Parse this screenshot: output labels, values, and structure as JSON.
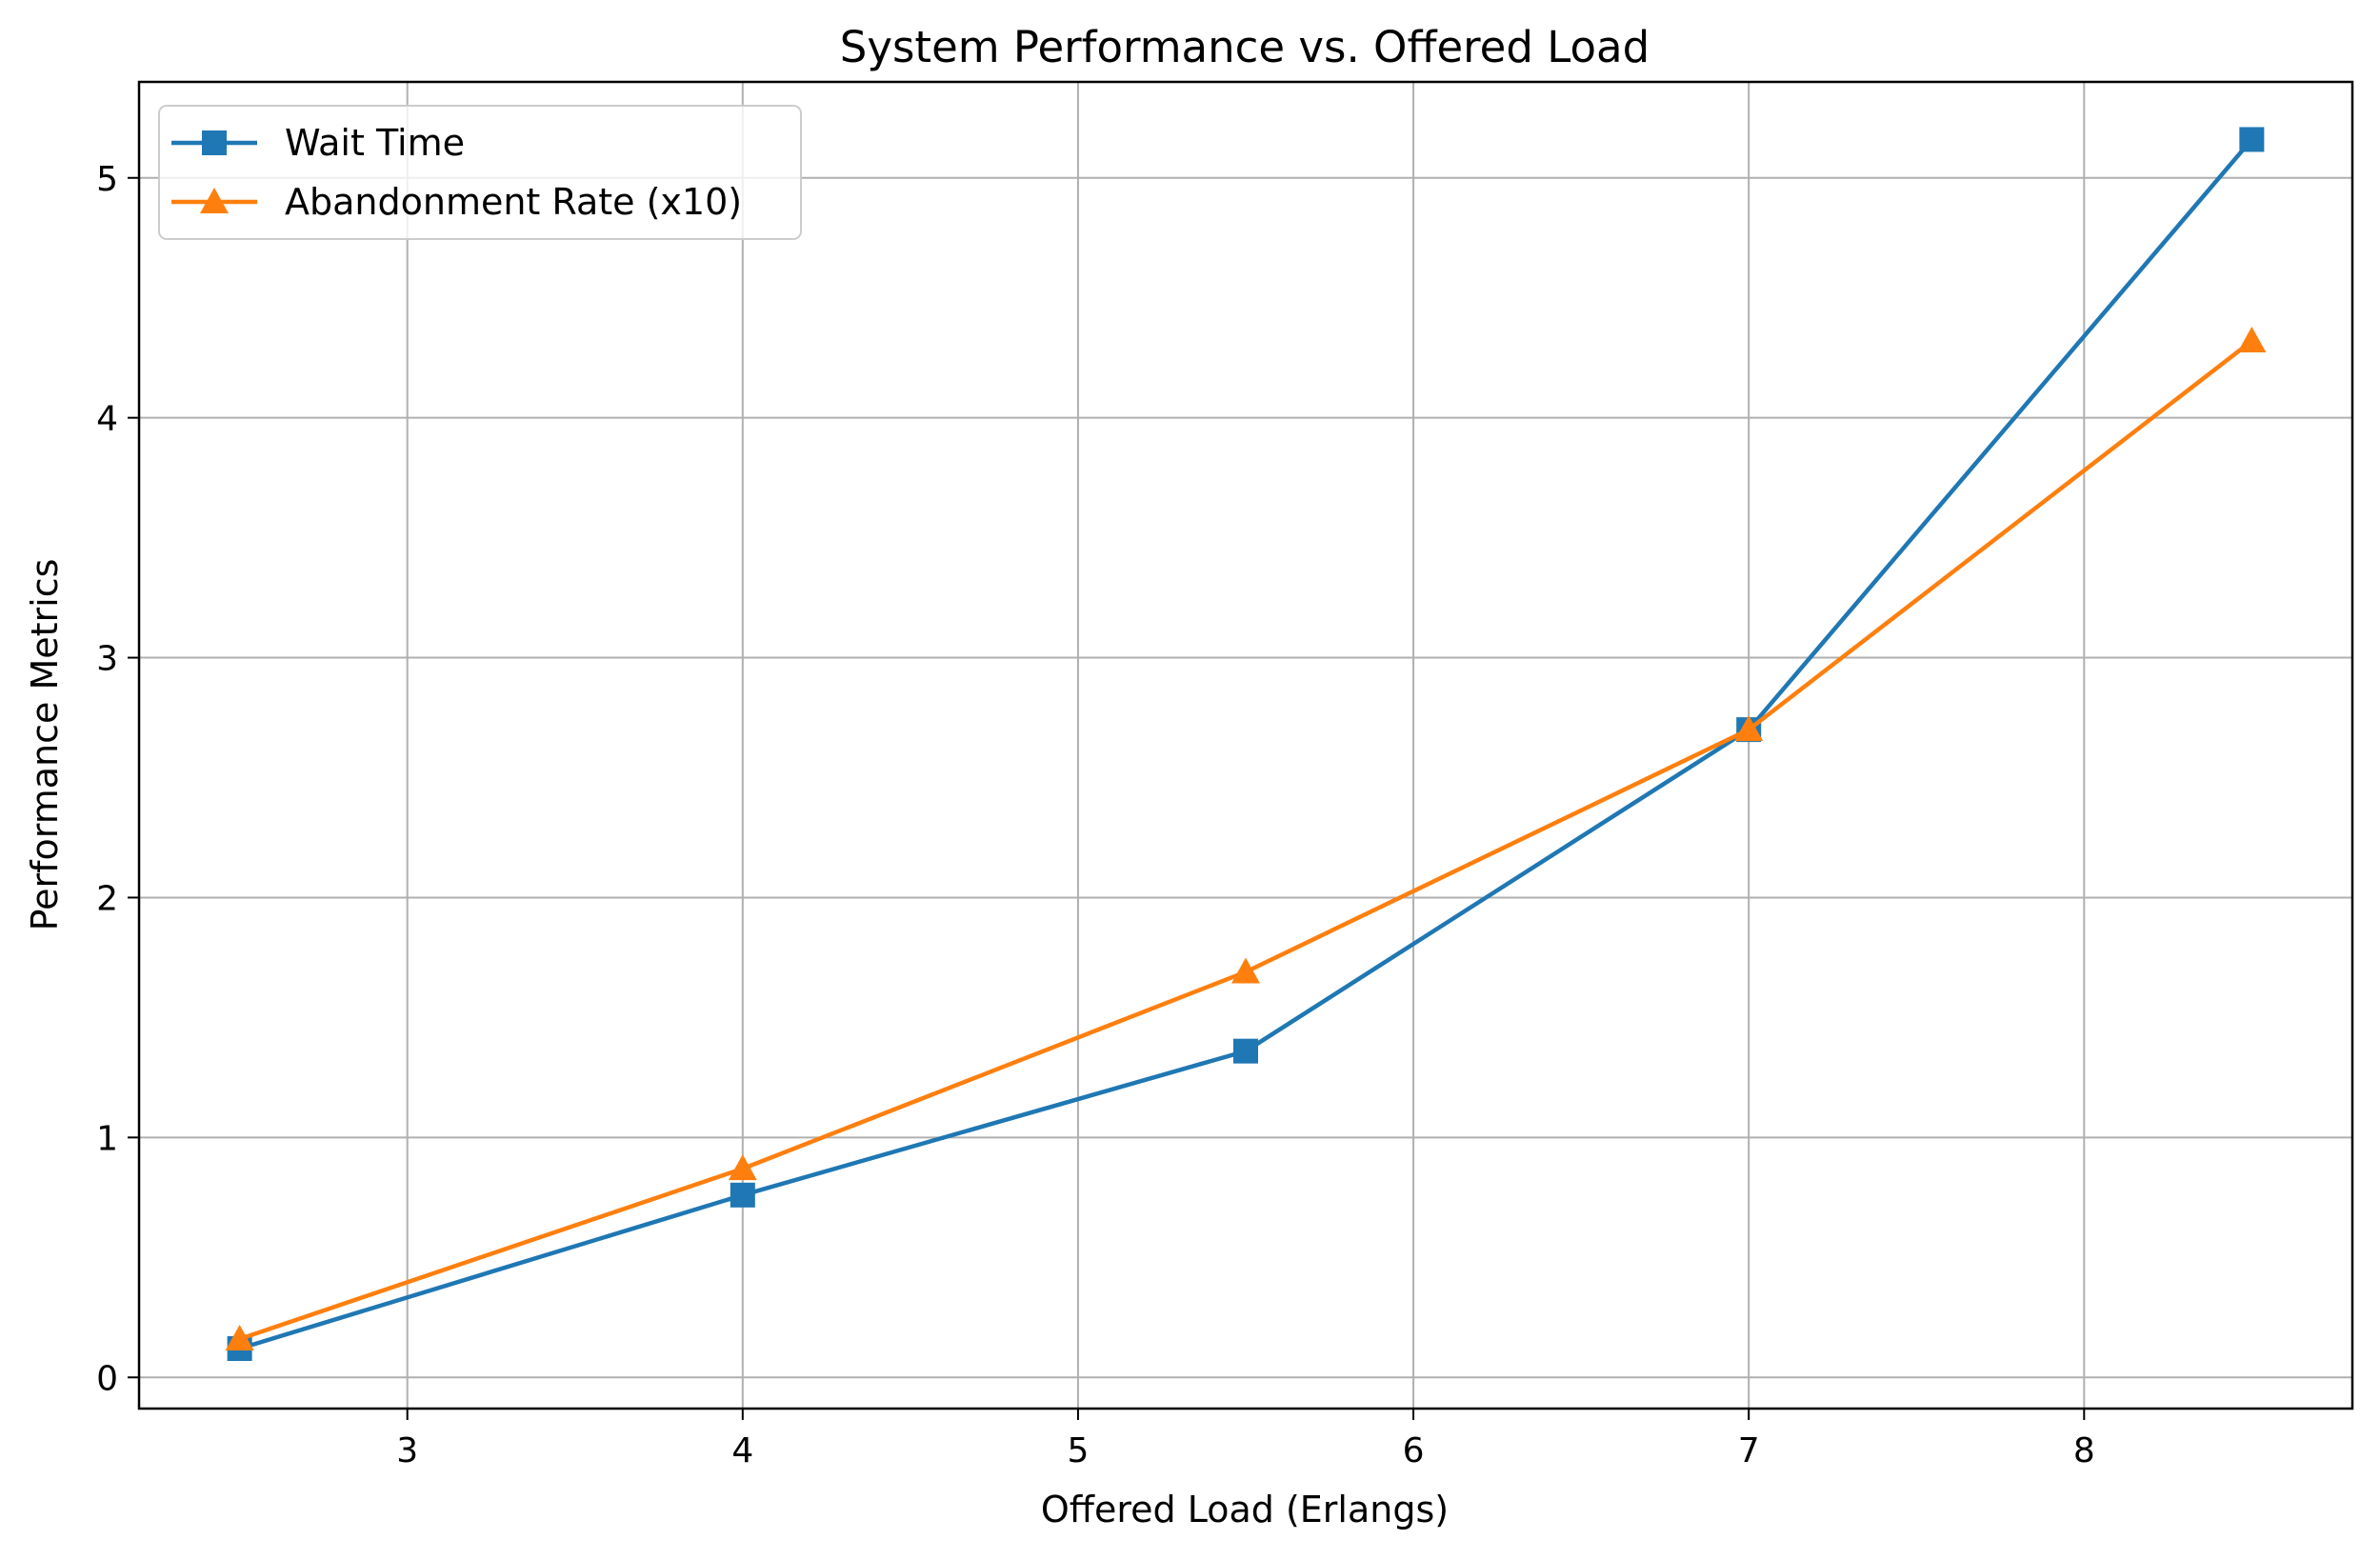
{
  "chart_data": {
    "type": "line",
    "title": "System Performance vs. Offered Load",
    "xlabel": "Offered Load (Erlangs)",
    "ylabel": "Performance Metrics",
    "x": [
      2.5,
      4,
      5.5,
      7,
      8.5
    ],
    "xlim": [
      2.2,
      8.8
    ],
    "ylim": [
      -0.13,
      5.4
    ],
    "xticks": [
      3,
      4,
      5,
      6,
      7,
      8
    ],
    "yticks": [
      0,
      1,
      2,
      3,
      4,
      5
    ],
    "grid": true,
    "legend_position": "top-left",
    "series": [
      {
        "name": "Wait Time",
        "marker": "square",
        "color": "#1f77b4",
        "values": [
          0.12,
          0.76,
          1.36,
          2.7,
          5.16
        ]
      },
      {
        "name": "Abandonment Rate (x10)",
        "marker": "triangle",
        "color": "#ff7f0e",
        "values": [
          0.16,
          0.87,
          1.69,
          2.7,
          4.32
        ]
      }
    ]
  }
}
